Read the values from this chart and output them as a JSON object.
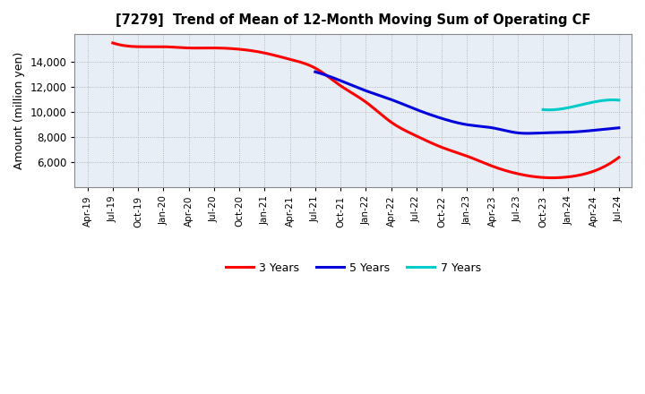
{
  "title": "[7279]  Trend of Mean of 12-Month Moving Sum of Operating CF",
  "ylabel": "Amount (million yen)",
  "bg_color": "#ffffff",
  "plot_bg_color": "#e8eef5",
  "grid_color": "#999999",
  "series": {
    "3 Years": {
      "color": "#ff0000",
      "x": [
        1,
        2,
        3,
        4,
        5,
        6,
        7,
        8,
        9,
        10,
        11,
        12,
        13,
        14,
        15,
        16,
        17,
        18,
        19,
        20,
        21
      ],
      "values": [
        15500,
        15200,
        15200,
        15100,
        15100,
        15000,
        14700,
        14200,
        13500,
        12100,
        10800,
        9200,
        8100,
        7200,
        6500,
        5700,
        5100,
        4800,
        4850,
        5300,
        6400
      ]
    },
    "5 Years": {
      "color": "#0000dd",
      "x": [
        9,
        10,
        11,
        12,
        13,
        14,
        15,
        16,
        17,
        18,
        19,
        20,
        21
      ],
      "values": [
        13200,
        12500,
        11700,
        11000,
        10200,
        9500,
        9000,
        8750,
        8350,
        8350,
        8400,
        8550,
        8750
      ]
    },
    "7 Years": {
      "color": "#00cccc",
      "x": [
        18,
        19,
        20,
        21
      ],
      "values": [
        10200,
        10350,
        10800,
        10950
      ]
    },
    "10 Years": {
      "color": "#008800",
      "x": [],
      "values": []
    }
  },
  "xlim": [
    -0.5,
    21.5
  ],
  "ylim": [
    4000,
    16200
  ],
  "yticks": [
    6000,
    8000,
    10000,
    12000,
    14000
  ],
  "xtick_positions": [
    0,
    1,
    2,
    3,
    4,
    5,
    6,
    7,
    8,
    9,
    10,
    11,
    12,
    13,
    14,
    15,
    16,
    17,
    18,
    19,
    20,
    21
  ],
  "xtick_labels": [
    "Apr-19",
    "Jul-19",
    "Oct-19",
    "Jan-20",
    "Apr-20",
    "Jul-20",
    "Oct-20",
    "Jan-21",
    "Apr-21",
    "Jul-21",
    "Oct-21",
    "Jan-22",
    "Apr-22",
    "Jul-22",
    "Oct-22",
    "Jan-23",
    "Apr-23",
    "Jul-23",
    "Oct-23",
    "Jan-24",
    "Apr-24",
    "Jul-24"
  ]
}
